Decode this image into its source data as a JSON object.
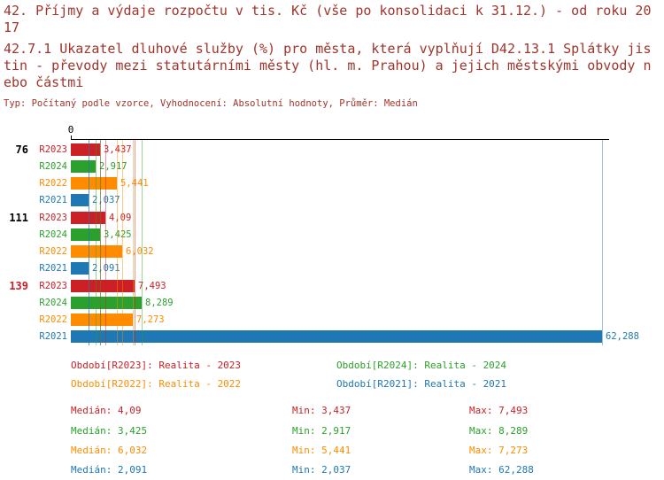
{
  "colors": {
    "title": "#a1352c",
    "axis": "#000000",
    "series": {
      "R2023": "#cb2026",
      "R2024": "#2ca02c",
      "R2022": "#ff8c00",
      "R2021": "#1f77b4"
    }
  },
  "chart_data": {
    "type": "bar",
    "orientation": "horizontal",
    "unit": "%",
    "title": "42. Příjmy a výdaje rozpočtu v tis. Kč (vše po konsolidaci k 31.12.) - od roku 2017",
    "subtitle": "42.7.1 Ukazatel dluhové služby (%) pro města, která vyplňují D42.13.1 Splátky jistin - převody mezi statutárními městy (hl. m. Prahou) a jejich městskými obvody nebo částmi",
    "meta": "Typ: Počítaný podle vzorce, Vyhodnocení: Absolutní hodnoty, Průměr: Medián",
    "x_axis": {
      "origin_label": "0",
      "min": 0,
      "max": 62.288
    },
    "series_order": [
      "R2023",
      "R2024",
      "R2022",
      "R2021"
    ],
    "groups": [
      {
        "id": "76",
        "id_color": "#000000",
        "bars": [
          {
            "series": "R2023",
            "value": 3.437,
            "label": "3,437"
          },
          {
            "series": "R2024",
            "value": 2.917,
            "label": "2,917"
          },
          {
            "series": "R2022",
            "value": 5.441,
            "label": "5,441"
          },
          {
            "series": "R2021",
            "value": 2.037,
            "label": "2,037"
          }
        ]
      },
      {
        "id": "111",
        "id_color": "#000000",
        "bars": [
          {
            "series": "R2023",
            "value": 4.09,
            "label": "4,09"
          },
          {
            "series": "R2024",
            "value": 3.425,
            "label": "3,425"
          },
          {
            "series": "R2022",
            "value": 6.032,
            "label": "6,032"
          },
          {
            "series": "R2021",
            "value": 2.091,
            "label": "2,091"
          }
        ]
      },
      {
        "id": "139",
        "id_color": "#cb2026",
        "bars": [
          {
            "series": "R2023",
            "value": 7.493,
            "label": "7,493"
          },
          {
            "series": "R2024",
            "value": 8.289,
            "label": "8,289"
          },
          {
            "series": "R2022",
            "value": 7.273,
            "label": "7,273"
          },
          {
            "series": "R2021",
            "value": 62.288,
            "label": "62,288"
          }
        ]
      }
    ],
    "legend": [
      {
        "series": "R2023",
        "label": "Období[R2023]: Realita - 2023"
      },
      {
        "series": "R2024",
        "label": "Období[R2024]: Realita - 2024"
      },
      {
        "series": "R2022",
        "label": "Období[R2022]: Realita - 2022"
      },
      {
        "series": "R2021",
        "label": "Období[R2021]: Realita - 2021"
      }
    ],
    "stats": [
      {
        "series": "R2023",
        "median": 4.09,
        "min": 3.437,
        "max": 7.493,
        "median_label": "Medián: 4,09",
        "min_label": "Min: 3,437",
        "max_label": "Max: 7,493"
      },
      {
        "series": "R2024",
        "median": 3.425,
        "min": 2.917,
        "max": 8.289,
        "median_label": "Medián: 3,425",
        "min_label": "Min: 2,917",
        "max_label": "Max: 8,289"
      },
      {
        "series": "R2022",
        "median": 6.032,
        "min": 5.441,
        "max": 7.273,
        "median_label": "Medián: 6,032",
        "min_label": "Min: 5,441",
        "max_label": "Max: 7,273"
      },
      {
        "series": "R2021",
        "median": 2.091,
        "min": 2.037,
        "max": 62.288,
        "median_label": "Medián: 2,091",
        "min_label": "Min: 2,037",
        "max_label": "Max: 62,288"
      }
    ]
  }
}
